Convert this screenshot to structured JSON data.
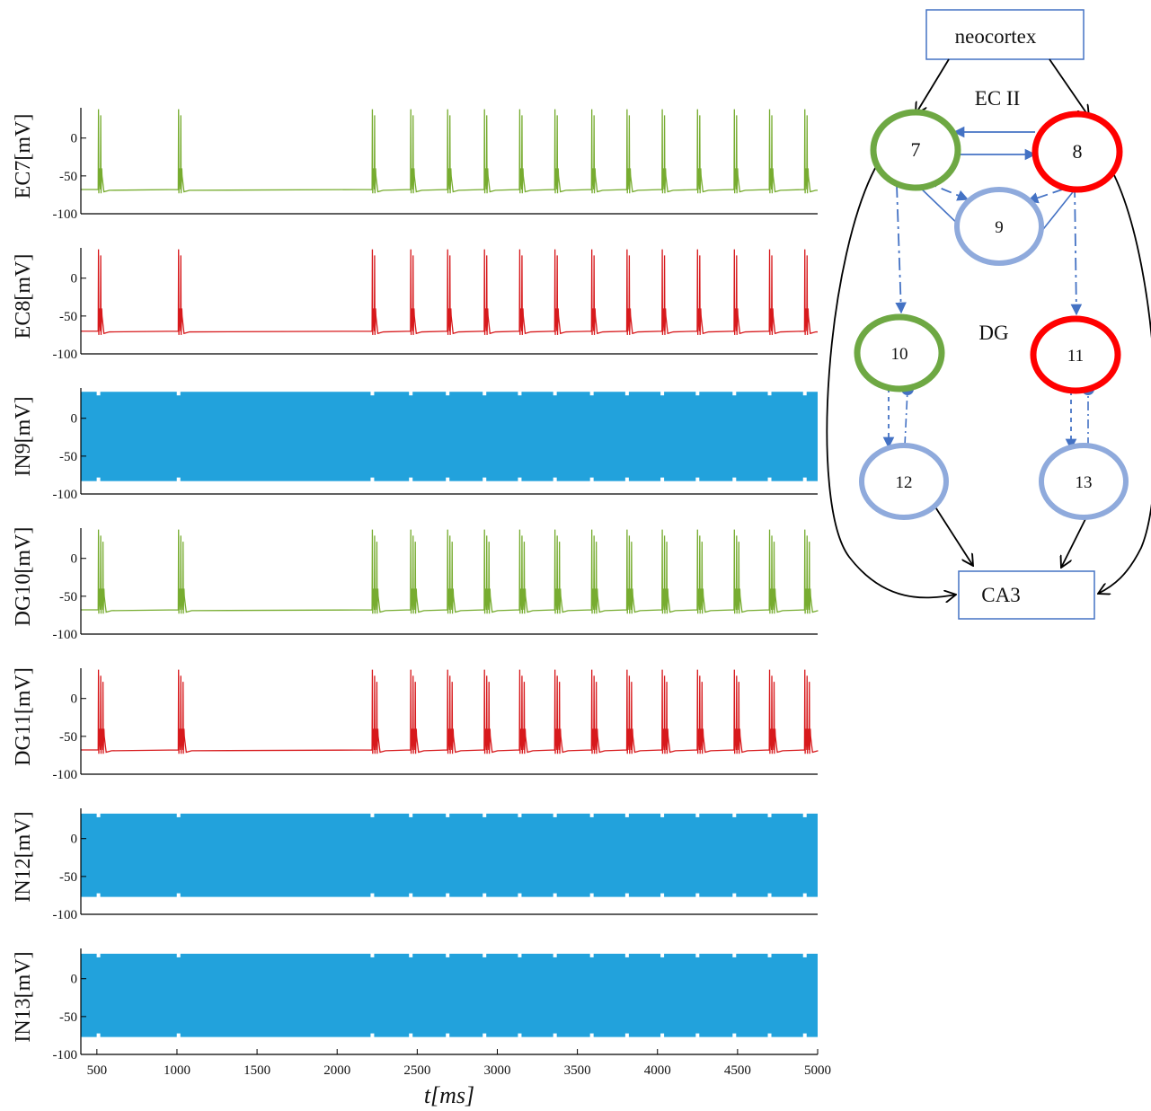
{
  "chart_data": {
    "type": "line",
    "x_axis": {
      "label": "t[ms]",
      "lim": [
        400,
        5000
      ],
      "ticks": [
        500,
        1000,
        1500,
        2000,
        2500,
        3000,
        3500,
        4000,
        4500,
        5000
      ],
      "tick_labels": [
        "500",
        "1000",
        "1500",
        "2000",
        "2500",
        "3000",
        "3500",
        "4000",
        "4500",
        "5000"
      ]
    },
    "y_ticks": [
      0,
      -50,
      -100
    ],
    "y_tick_labels": [
      "0",
      "-50",
      "-100"
    ],
    "ylim": [
      -100,
      40
    ],
    "burst_times_ms": [
      510,
      1010,
      2220,
      2460,
      2690,
      2920,
      3140,
      3360,
      3590,
      3810,
      4030,
      4250,
      4480,
      4700,
      4920
    ],
    "series": [
      {
        "name": "EC7[mV]",
        "kind": "spiking",
        "color": "#77ac30",
        "rest_mV": -68,
        "peak_mV": 38,
        "spikes_per_burst": 2
      },
      {
        "name": "EC8[mV]",
        "kind": "spiking",
        "color": "#d7191c",
        "rest_mV": -70,
        "peak_mV": 38,
        "spikes_per_burst": 2
      },
      {
        "name": "IN9[mV]",
        "kind": "fast-oscillation",
        "color": "#22a2dc",
        "min_mV": -83,
        "max_mV": 35
      },
      {
        "name": "DG10[mV]",
        "kind": "spiking",
        "color": "#77ac30",
        "rest_mV": -68,
        "peak_mV": 38,
        "spikes_per_burst": 3
      },
      {
        "name": "DG11[mV]",
        "kind": "spiking",
        "color": "#d7191c",
        "rest_mV": -68,
        "peak_mV": 38,
        "spikes_per_burst": 3
      },
      {
        "name": "IN12[mV]",
        "kind": "fast-oscillation",
        "color": "#22a2dc",
        "min_mV": -77,
        "max_mV": 33
      },
      {
        "name": "IN13[mV]",
        "kind": "fast-oscillation",
        "color": "#22a2dc",
        "min_mV": -77,
        "max_mV": 33
      }
    ]
  },
  "diagram": {
    "neocortex": "neocortex",
    "ec2": "EC II",
    "dg": "DG",
    "ca3": "CA3",
    "nodes": [
      {
        "id": "7",
        "label": "7",
        "color": "#6ea843"
      },
      {
        "id": "8",
        "label": "8",
        "color": "#ff0000"
      },
      {
        "id": "9",
        "label": "9",
        "color": "#8faadc"
      },
      {
        "id": "10",
        "label": "10",
        "color": "#6ea843"
      },
      {
        "id": "11",
        "label": "11",
        "color": "#ff0000"
      },
      {
        "id": "12",
        "label": "12",
        "color": "#8faadc"
      },
      {
        "id": "13",
        "label": "13",
        "color": "#8faadc"
      }
    ],
    "edge_color": "#4472c4"
  }
}
